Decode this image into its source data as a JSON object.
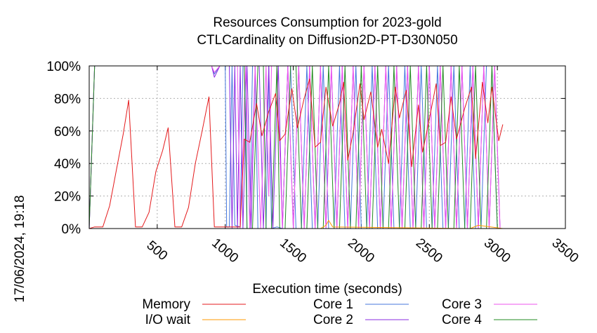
{
  "chart_data": {
    "type": "line",
    "title_line1": "Resources Consumption for 2023-gold",
    "title_line2": "CTLCardinality on Diffusion2D-PT-D30N050",
    "xlabel": "Execution time (seconds)",
    "ylabel": "",
    "side_label": "17/06/2024, 19:18",
    "xlim": [
      0,
      3500
    ],
    "ylim": [
      0,
      100
    ],
    "x_ticks": [
      500,
      1000,
      1500,
      2000,
      2500,
      3000,
      3500
    ],
    "y_ticks": [
      0,
      20,
      40,
      60,
      80,
      100
    ],
    "y_tick_labels": [
      "0%",
      "20%",
      "40%",
      "60%",
      "80%",
      "100%"
    ],
    "x_tick_labels": [
      "500",
      "1000",
      "1500",
      "2000",
      "2500",
      "3000",
      "3500"
    ],
    "grid": true,
    "legend_position": "bottom",
    "series": [
      {
        "name": "Memory",
        "color": "#e41a1c",
        "points": [
          [
            0,
            0
          ],
          [
            40,
            1
          ],
          [
            100,
            1
          ],
          [
            150,
            14
          ],
          [
            200,
            36
          ],
          [
            250,
            58
          ],
          [
            290,
            79
          ],
          [
            340,
            1
          ],
          [
            390,
            1
          ],
          [
            440,
            10
          ],
          [
            490,
            35
          ],
          [
            540,
            48
          ],
          [
            580,
            62
          ],
          [
            630,
            1
          ],
          [
            680,
            1
          ],
          [
            730,
            13
          ],
          [
            780,
            40
          ],
          [
            830,
            60
          ],
          [
            880,
            81
          ],
          [
            920,
            1
          ],
          [
            1000,
            1
          ],
          [
            1060,
            1
          ],
          [
            1110,
            1
          ],
          [
            1140,
            55
          ],
          [
            1180,
            53
          ],
          [
            1230,
            77
          ],
          [
            1270,
            57
          ],
          [
            1320,
            72
          ],
          [
            1370,
            83
          ],
          [
            1400,
            54
          ],
          [
            1440,
            58
          ],
          [
            1490,
            86
          ],
          [
            1530,
            62
          ],
          [
            1580,
            80
          ],
          [
            1620,
            92
          ],
          [
            1660,
            50
          ],
          [
            1700,
            53
          ],
          [
            1740,
            87
          ],
          [
            1790,
            63
          ],
          [
            1840,
            77
          ],
          [
            1870,
            90
          ],
          [
            1900,
            42
          ],
          [
            1940,
            59
          ],
          [
            1990,
            89
          ],
          [
            2020,
            67
          ],
          [
            2070,
            84
          ],
          [
            2120,
            50
          ],
          [
            2150,
            61
          ],
          [
            2200,
            40
          ],
          [
            2250,
            87
          ],
          [
            2280,
            68
          ],
          [
            2330,
            85
          ],
          [
            2370,
            38
          ],
          [
            2420,
            76
          ],
          [
            2450,
            47
          ],
          [
            2490,
            63
          ],
          [
            2550,
            89
          ],
          [
            2580,
            51
          ],
          [
            2620,
            53
          ],
          [
            2660,
            81
          ],
          [
            2700,
            55
          ],
          [
            2760,
            74
          ],
          [
            2810,
            87
          ],
          [
            2840,
            43
          ],
          [
            2890,
            90
          ],
          [
            2930,
            65
          ],
          [
            2960,
            87
          ],
          [
            3010,
            54
          ],
          [
            3040,
            64
          ]
        ]
      },
      {
        "name": "I/O wait",
        "color": "#ff9900",
        "points": [
          [
            0,
            0
          ],
          [
            100,
            0
          ],
          [
            1000,
            0
          ],
          [
            1700,
            0
          ],
          [
            1740,
            2
          ],
          [
            1760,
            5
          ],
          [
            1790,
            1
          ],
          [
            2800,
            0
          ],
          [
            2860,
            2
          ],
          [
            3040,
            0
          ]
        ]
      },
      {
        "name": "Core 1",
        "color": "#4477dd",
        "points": [
          [
            0,
            0
          ],
          [
            40,
            100
          ],
          [
            900,
            100
          ],
          [
            920,
            95
          ],
          [
            960,
            100
          ],
          [
            1000,
            100
          ],
          [
            1010,
            1
          ],
          [
            1030,
            1
          ],
          [
            1050,
            100
          ],
          [
            1070,
            2
          ],
          [
            1110,
            1
          ],
          [
            1130,
            100
          ],
          [
            1150,
            100
          ],
          [
            1160,
            0
          ],
          [
            1180,
            0
          ],
          [
            1200,
            100
          ],
          [
            1220,
            100
          ],
          [
            1240,
            0
          ],
          [
            1300,
            0
          ],
          [
            1320,
            100
          ],
          [
            1340,
            0
          ],
          [
            1380,
            1
          ],
          [
            1420,
            0
          ],
          [
            1460,
            100
          ],
          [
            1480,
            100
          ],
          [
            1520,
            0
          ],
          [
            1560,
            0
          ],
          [
            1600,
            100
          ],
          [
            1640,
            0
          ],
          [
            1680,
            0
          ],
          [
            1720,
            100
          ],
          [
            1760,
            0
          ],
          [
            1800,
            0
          ],
          [
            1840,
            100
          ],
          [
            1880,
            0
          ],
          [
            1920,
            0
          ],
          [
            1960,
            100
          ],
          [
            2000,
            0
          ],
          [
            2040,
            0
          ],
          [
            2080,
            100
          ],
          [
            2120,
            0
          ],
          [
            2160,
            0
          ],
          [
            2200,
            100
          ],
          [
            2240,
            0
          ],
          [
            2280,
            0
          ],
          [
            2320,
            100
          ],
          [
            2360,
            0
          ],
          [
            2400,
            0
          ],
          [
            2440,
            100
          ],
          [
            2480,
            0
          ],
          [
            2520,
            0
          ],
          [
            2560,
            100
          ],
          [
            2600,
            0
          ],
          [
            2640,
            0
          ],
          [
            2680,
            100
          ],
          [
            2720,
            0
          ],
          [
            2760,
            0
          ],
          [
            2800,
            100
          ],
          [
            2840,
            0
          ],
          [
            2880,
            0
          ],
          [
            2920,
            100
          ],
          [
            2960,
            100
          ],
          [
            3000,
            0
          ],
          [
            3040,
            0
          ]
        ]
      },
      {
        "name": "Core 2",
        "color": "#8a2be2",
        "points": [
          [
            0,
            0
          ],
          [
            40,
            100
          ],
          [
            900,
            100
          ],
          [
            920,
            93
          ],
          [
            960,
            100
          ],
          [
            1000,
            100
          ],
          [
            1030,
            100
          ],
          [
            1050,
            0
          ],
          [
            1070,
            100
          ],
          [
            1090,
            0
          ],
          [
            1110,
            100
          ],
          [
            1130,
            0
          ],
          [
            1160,
            100
          ],
          [
            1190,
            0
          ],
          [
            1220,
            100
          ],
          [
            1250,
            100
          ],
          [
            1280,
            0
          ],
          [
            1320,
            100
          ],
          [
            1350,
            0
          ],
          [
            1390,
            100
          ],
          [
            1420,
            0
          ],
          [
            1460,
            100
          ],
          [
            1500,
            0
          ],
          [
            1540,
            100
          ],
          [
            1580,
            0
          ],
          [
            1620,
            100
          ],
          [
            1660,
            0
          ],
          [
            1700,
            100
          ],
          [
            1740,
            0
          ],
          [
            1780,
            100
          ],
          [
            1820,
            0
          ],
          [
            1860,
            100
          ],
          [
            1900,
            0
          ],
          [
            1940,
            100
          ],
          [
            1980,
            0
          ],
          [
            2020,
            100
          ],
          [
            2060,
            0
          ],
          [
            2100,
            100
          ],
          [
            2140,
            0
          ],
          [
            2180,
            100
          ],
          [
            2220,
            0
          ],
          [
            2260,
            100
          ],
          [
            2300,
            0
          ],
          [
            2340,
            100
          ],
          [
            2380,
            0
          ],
          [
            2420,
            100
          ],
          [
            2460,
            0
          ],
          [
            2500,
            100
          ],
          [
            2540,
            0
          ],
          [
            2580,
            100
          ],
          [
            2620,
            0
          ],
          [
            2660,
            100
          ],
          [
            2700,
            0
          ],
          [
            2740,
            100
          ],
          [
            2780,
            0
          ],
          [
            2820,
            100
          ],
          [
            2860,
            0
          ],
          [
            2900,
            100
          ],
          [
            2940,
            0
          ],
          [
            2980,
            100
          ],
          [
            3020,
            0
          ],
          [
            3040,
            0
          ]
        ]
      },
      {
        "name": "Core 3",
        "color": "#ee55ee",
        "points": [
          [
            0,
            0
          ],
          [
            40,
            100
          ],
          [
            900,
            100
          ],
          [
            920,
            96
          ],
          [
            960,
            100
          ],
          [
            1000,
            100
          ],
          [
            1090,
            100
          ],
          [
            1110,
            0
          ],
          [
            1150,
            100
          ],
          [
            1180,
            0
          ],
          [
            1220,
            100
          ],
          [
            1260,
            0
          ],
          [
            1300,
            100
          ],
          [
            1320,
            20
          ],
          [
            1340,
            100
          ],
          [
            1380,
            100
          ],
          [
            1420,
            0
          ],
          [
            1460,
            100
          ],
          [
            1500,
            0
          ],
          [
            1540,
            100
          ],
          [
            1580,
            0
          ],
          [
            1620,
            100
          ],
          [
            1660,
            0
          ],
          [
            1700,
            100
          ],
          [
            1740,
            0
          ],
          [
            1780,
            100
          ],
          [
            1820,
            0
          ],
          [
            1860,
            100
          ],
          [
            1900,
            0
          ],
          [
            1940,
            100
          ],
          [
            1980,
            0
          ],
          [
            2020,
            100
          ],
          [
            2060,
            0
          ],
          [
            2100,
            100
          ],
          [
            2140,
            0
          ],
          [
            2180,
            100
          ],
          [
            2220,
            0
          ],
          [
            2260,
            100
          ],
          [
            2300,
            0
          ],
          [
            2340,
            100
          ],
          [
            2380,
            0
          ],
          [
            2420,
            100
          ],
          [
            2460,
            0
          ],
          [
            2500,
            100
          ],
          [
            2540,
            0
          ],
          [
            2580,
            100
          ],
          [
            2620,
            0
          ],
          [
            2660,
            100
          ],
          [
            2700,
            0
          ],
          [
            2740,
            100
          ],
          [
            2780,
            0
          ],
          [
            2820,
            100
          ],
          [
            2860,
            0
          ],
          [
            2900,
            100
          ],
          [
            2940,
            0
          ],
          [
            2980,
            100
          ],
          [
            3020,
            0
          ],
          [
            3040,
            0
          ]
        ]
      },
      {
        "name": "Core 4",
        "color": "#228b22",
        "points": [
          [
            0,
            0
          ],
          [
            40,
            100
          ],
          [
            1000,
            100
          ],
          [
            1110,
            100
          ],
          [
            1140,
            100
          ],
          [
            1160,
            0
          ],
          [
            1200,
            0
          ],
          [
            1240,
            100
          ],
          [
            1280,
            100
          ],
          [
            1300,
            0
          ],
          [
            1340,
            0
          ],
          [
            1380,
            100
          ],
          [
            1400,
            0
          ],
          [
            1440,
            0
          ],
          [
            1480,
            100
          ],
          [
            1520,
            100
          ],
          [
            1560,
            0
          ],
          [
            1600,
            0
          ],
          [
            1640,
            100
          ],
          [
            1680,
            0
          ],
          [
            1720,
            0
          ],
          [
            1760,
            100
          ],
          [
            1800,
            0
          ],
          [
            1840,
            0
          ],
          [
            1880,
            100
          ],
          [
            1920,
            0
          ],
          [
            1960,
            0
          ],
          [
            2000,
            100
          ],
          [
            2040,
            0
          ],
          [
            2080,
            0
          ],
          [
            2120,
            100
          ],
          [
            2160,
            0
          ],
          [
            2200,
            0
          ],
          [
            2240,
            100
          ],
          [
            2280,
            0
          ],
          [
            2320,
            0
          ],
          [
            2360,
            100
          ],
          [
            2400,
            0
          ],
          [
            2440,
            0
          ],
          [
            2480,
            100
          ],
          [
            2520,
            0
          ],
          [
            2560,
            0
          ],
          [
            2600,
            100
          ],
          [
            2640,
            0
          ],
          [
            2680,
            0
          ],
          [
            2720,
            100
          ],
          [
            2760,
            0
          ],
          [
            2800,
            0
          ],
          [
            2840,
            100
          ],
          [
            2880,
            0
          ],
          [
            2920,
            0
          ],
          [
            2960,
            100
          ],
          [
            3000,
            0
          ],
          [
            3040,
            0
          ]
        ]
      }
    ]
  }
}
